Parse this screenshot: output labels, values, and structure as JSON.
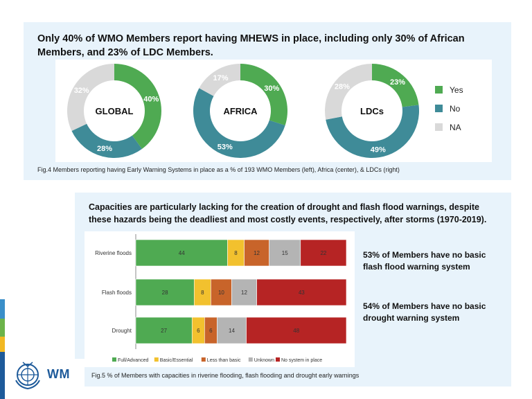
{
  "top": {
    "headline": "Only 40% of WMO Members report having MHEWS in place, including only 30% of African Members, and 23% of LDC Members.",
    "caption": "Fig.4 Members reporting having Early Warning Systems in place as a % of 193 WMO Members (left), Africa (center), & LDCs (right)"
  },
  "bottom": {
    "headline": "Capacities are particularly lacking for the creation of drought and flash flood warnings, despite these hazards being the deadliest and most costly events, respectively, after storms (1970-2019).",
    "caption": "Fig.5 % of Members with capacities in riverine flooding, flash flooding and drought early warnings",
    "note_flash": "53% of Members have no basic flash flood warning system",
    "note_drought": "54% of Members have no basic drought warning system"
  },
  "logo": {
    "text": "WM"
  },
  "chart_data": [
    {
      "type": "pie",
      "variant": "donut",
      "legend_position": "right",
      "colors": {
        "Yes": "#4faa52",
        "No": "#3f8b98",
        "NA": "#d9d9d9"
      },
      "legend": [
        "Yes",
        "No",
        "NA"
      ],
      "charts": [
        {
          "center_label": "GLOBAL",
          "slices": [
            {
              "name": "Yes",
              "value": 40,
              "label": "40%"
            },
            {
              "name": "No",
              "value": 28,
              "label": "28%"
            },
            {
              "name": "NA",
              "value": 32,
              "label": "32%"
            }
          ]
        },
        {
          "center_label": "AFRICA",
          "slices": [
            {
              "name": "Yes",
              "value": 30,
              "label": "30%"
            },
            {
              "name": "No",
              "value": 53,
              "label": "53%"
            },
            {
              "name": "NA",
              "value": 17,
              "label": "17%"
            }
          ]
        },
        {
          "center_label": "LDCs",
          "slices": [
            {
              "name": "Yes",
              "value": 23,
              "label": "23%"
            },
            {
              "name": "No",
              "value": 49,
              "label": "49%"
            },
            {
              "name": "NA",
              "value": 28,
              "label": "28%"
            }
          ]
        }
      ]
    },
    {
      "type": "bar",
      "orientation": "horizontal",
      "stacked": true,
      "grid": false,
      "legend_position": "bottom",
      "categories": [
        "Riverine floods",
        "Flash floods",
        "Drought"
      ],
      "series": [
        {
          "name": "Full/Advanced",
          "color": "#4faa52",
          "values": [
            44,
            28,
            27
          ]
        },
        {
          "name": "Basic/Essential",
          "color": "#f2c12e",
          "values": [
            8,
            8,
            6
          ]
        },
        {
          "name": "Less than basic",
          "color": "#c8642a",
          "values": [
            12,
            10,
            6
          ]
        },
        {
          "name": "Unknown",
          "color": "#b4b4b4",
          "values": [
            15,
            12,
            14
          ]
        },
        {
          "name": "No system in place",
          "color": "#b62424",
          "values": [
            22,
            43,
            48
          ]
        }
      ]
    }
  ]
}
